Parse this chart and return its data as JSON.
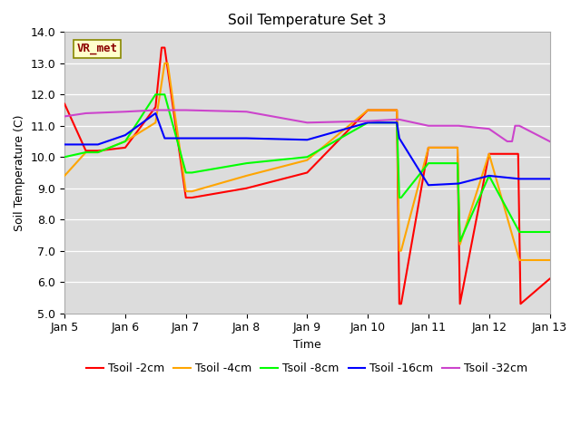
{
  "title": "Soil Temperature Set 3",
  "xlabel": "Time",
  "ylabel": "Soil Temperature (C)",
  "ylim": [
    5.0,
    14.0
  ],
  "yticks": [
    5.0,
    6.0,
    7.0,
    8.0,
    9.0,
    10.0,
    11.0,
    12.0,
    13.0,
    14.0
  ],
  "annotation_text": "VR_met",
  "annotation_color": "#8B0000",
  "annotation_bg": "#FFFFCC",
  "xtick_positions": [
    0,
    1,
    2,
    3,
    4,
    5,
    6,
    7,
    8
  ],
  "xtick_labels": [
    "Jan 5",
    "Jan 6",
    "Jan 7",
    "Jan 8",
    "Jan 9",
    "Jan 10",
    "Jan 11",
    "Jan 12",
    "Jan 13"
  ],
  "tsoil_2_x": [
    0.0,
    0.35,
    0.55,
    1.0,
    1.5,
    1.6,
    1.65,
    2.0,
    2.1,
    3.0,
    4.0,
    5.0,
    5.48,
    5.52,
    5.55,
    6.0,
    6.48,
    6.52,
    7.0,
    7.48,
    7.52,
    8.0
  ],
  "tsoil_2_y": [
    11.7,
    10.2,
    10.2,
    10.3,
    11.6,
    13.5,
    13.5,
    8.7,
    8.7,
    9.0,
    9.5,
    11.5,
    11.5,
    5.3,
    5.3,
    10.3,
    10.3,
    5.3,
    10.1,
    10.1,
    5.3,
    6.1
  ],
  "tsoil_4_x": [
    0.0,
    0.35,
    0.55,
    1.0,
    1.5,
    1.65,
    1.7,
    2.0,
    2.1,
    3.0,
    4.0,
    5.0,
    5.48,
    5.52,
    5.55,
    6.0,
    6.48,
    6.52,
    7.0,
    7.5,
    8.0
  ],
  "tsoil_4_y": [
    9.4,
    10.15,
    10.15,
    10.5,
    11.1,
    13.0,
    13.0,
    8.9,
    8.9,
    9.4,
    9.9,
    11.5,
    11.5,
    7.0,
    7.0,
    10.3,
    10.3,
    7.2,
    10.1,
    6.7,
    6.7
  ],
  "tsoil_8_x": [
    0.0,
    0.35,
    0.55,
    1.0,
    1.5,
    1.6,
    1.65,
    2.0,
    2.1,
    3.0,
    4.0,
    5.0,
    5.48,
    5.52,
    5.55,
    6.0,
    6.48,
    6.52,
    7.0,
    7.5,
    8.0
  ],
  "tsoil_8_y": [
    10.0,
    10.15,
    10.15,
    10.5,
    12.0,
    12.0,
    12.0,
    9.5,
    9.5,
    9.8,
    10.0,
    11.1,
    11.1,
    8.7,
    8.7,
    9.8,
    9.8,
    7.3,
    9.4,
    7.6,
    7.6
  ],
  "tsoil_16_x": [
    0.0,
    0.35,
    0.55,
    1.0,
    1.5,
    1.65,
    2.0,
    2.5,
    3.0,
    4.0,
    5.0,
    5.48,
    5.52,
    6.0,
    6.5,
    7.0,
    7.5,
    8.0
  ],
  "tsoil_16_y": [
    10.4,
    10.4,
    10.4,
    10.7,
    11.4,
    10.6,
    10.6,
    10.6,
    10.6,
    10.55,
    11.1,
    11.1,
    10.6,
    9.1,
    9.15,
    9.4,
    9.3,
    9.3
  ],
  "tsoil_32_x": [
    0.0,
    0.35,
    1.0,
    1.5,
    2.0,
    3.0,
    4.0,
    5.0,
    5.48,
    5.52,
    6.0,
    6.5,
    7.0,
    7.3,
    7.38,
    7.43,
    7.5,
    8.0
  ],
  "tsoil_32_y": [
    11.3,
    11.4,
    11.45,
    11.5,
    11.5,
    11.45,
    11.1,
    11.15,
    11.2,
    11.2,
    11.0,
    11.0,
    10.9,
    10.5,
    10.5,
    11.0,
    11.0,
    10.5
  ]
}
